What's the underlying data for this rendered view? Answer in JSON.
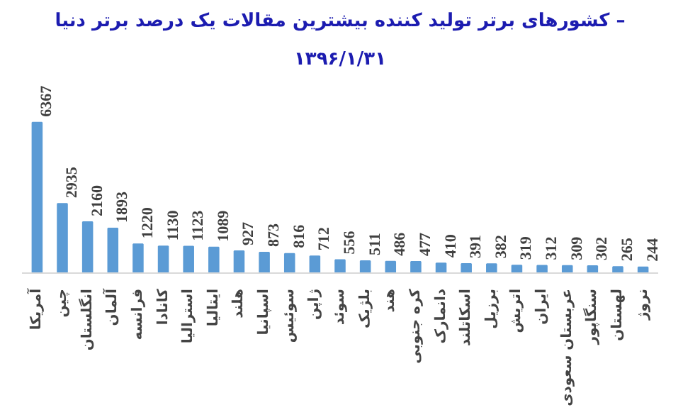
{
  "chart_data": {
    "type": "bar",
    "title": "کشورهای برتر تولید کننده بیشترین مقالات یک درصد برتر دنیا –",
    "subtitle": "۱۳۹۶/۱/۳۱",
    "categories": [
      "آمریکا",
      "چین",
      "انگلستان",
      "آلمان",
      "فرانسه",
      "کانادا",
      "استرالیا",
      "ایتالیا",
      "هلند",
      "اسپانیا",
      "سوئیس",
      "ژاپن",
      "سوئد",
      "بلژیک",
      "هند",
      "کره جنوبی",
      "دانمارک",
      "اسکاتلند",
      "برزیل",
      "اتریش",
      "ایران",
      "عربستان سعودی",
      "سنگاپور",
      "لهستان",
      "نروژ"
    ],
    "values": [
      6367,
      2935,
      2160,
      1893,
      1220,
      1130,
      1123,
      1089,
      927,
      873,
      816,
      712,
      556,
      511,
      486,
      477,
      410,
      391,
      382,
      319,
      312,
      309,
      302,
      265,
      244
    ],
    "color": "#5b9bd5",
    "data_labels": true,
    "grid": false
  }
}
